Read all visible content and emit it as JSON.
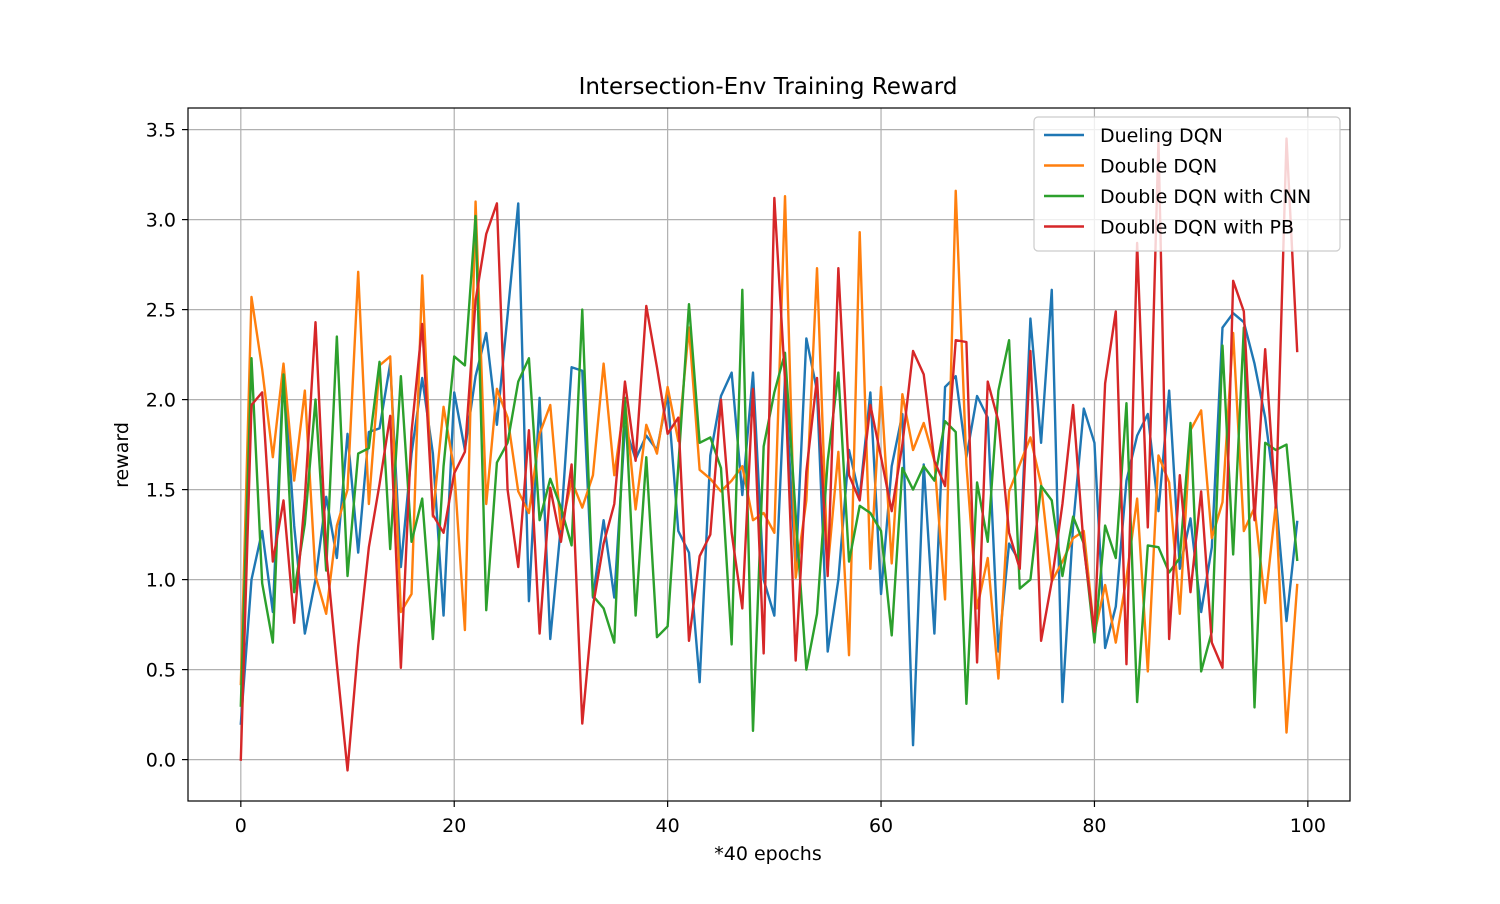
{
  "chart_data": {
    "type": "line",
    "title": "Intersection-Env Training Reward",
    "xlabel": "*40 epochs",
    "ylabel": "reward",
    "xlim": [
      -4.95,
      103.95
    ],
    "ylim": [
      -0.23,
      3.62
    ],
    "xticks": [
      0,
      20,
      40,
      60,
      80,
      100
    ],
    "xtick_labels": [
      "0",
      "20",
      "40",
      "60",
      "80",
      "100"
    ],
    "yticks": [
      0.0,
      0.5,
      1.0,
      1.5,
      2.0,
      2.5,
      3.0,
      3.5
    ],
    "ytick_labels": [
      "0.0",
      "0.5",
      "1.0",
      "1.5",
      "2.0",
      "2.5",
      "3.0",
      "3.5"
    ],
    "grid": true,
    "legend_position": "top-right",
    "x": [
      0,
      1,
      2,
      3,
      4,
      5,
      6,
      7,
      8,
      9,
      10,
      11,
      12,
      13,
      14,
      15,
      16,
      17,
      18,
      19,
      20,
      21,
      22,
      23,
      24,
      25,
      26,
      27,
      28,
      29,
      30,
      31,
      32,
      33,
      34,
      35,
      36,
      37,
      38,
      39,
      40,
      41,
      42,
      43,
      44,
      45,
      46,
      47,
      48,
      49,
      50,
      51,
      52,
      53,
      54,
      55,
      56,
      57,
      58,
      59,
      60,
      61,
      62,
      63,
      64,
      65,
      66,
      67,
      68,
      69,
      70,
      71,
      72,
      73,
      74,
      75,
      76,
      77,
      78,
      79,
      80,
      81,
      82,
      83,
      84,
      85,
      86,
      87,
      88,
      89,
      90,
      91,
      92,
      93,
      94,
      95,
      96,
      97,
      98,
      99
    ],
    "series": [
      {
        "name": "Dueling DQN",
        "color": "#1f77b4",
        "values": [
          0.2,
          1.0,
          1.27,
          0.82,
          2.17,
          1.3,
          0.7,
          1.0,
          1.46,
          1.12,
          1.81,
          1.15,
          1.82,
          1.84,
          2.2,
          1.07,
          1.7,
          2.12,
          1.7,
          0.8,
          2.04,
          1.72,
          2.13,
          2.37,
          1.86,
          2.47,
          3.09,
          0.88,
          2.01,
          0.67,
          1.3,
          2.18,
          2.16,
          0.9,
          1.33,
          0.9,
          1.85,
          1.67,
          1.8,
          1.72,
          2.03,
          1.27,
          1.15,
          0.43,
          1.69,
          2.02,
          2.15,
          1.47,
          2.15,
          1.0,
          0.8,
          2.12,
          1.05,
          2.34,
          2.05,
          0.6,
          1.0,
          1.72,
          1.46,
          2.04,
          0.92,
          1.63,
          1.92,
          0.08,
          1.64,
          0.7,
          2.07,
          2.13,
          1.68,
          2.02,
          1.9,
          0.6,
          1.2,
          1.1,
          2.45,
          1.76,
          2.61,
          0.32,
          1.3,
          1.95,
          1.76,
          0.62,
          0.85,
          1.55,
          1.8,
          1.92,
          1.38,
          2.05,
          1.06,
          1.34,
          0.82,
          1.18,
          2.4,
          2.48,
          2.43,
          2.2,
          1.9,
          1.45,
          0.77,
          1.32
        ]
      },
      {
        "name": "Double DQN",
        "color": "#ff7f0e",
        "values": [
          0.42,
          2.57,
          2.17,
          1.68,
          2.2,
          1.55,
          2.05,
          1.02,
          0.81,
          1.3,
          1.5,
          2.71,
          1.42,
          2.19,
          2.24,
          0.82,
          0.92,
          2.69,
          1.35,
          1.96,
          1.61,
          0.72,
          3.1,
          1.42,
          2.06,
          1.9,
          1.49,
          1.37,
          1.81,
          1.97,
          1.28,
          1.55,
          1.4,
          1.58,
          2.2,
          1.58,
          2.0,
          1.39,
          1.86,
          1.7,
          2.07,
          1.77,
          2.4,
          1.61,
          1.56,
          1.49,
          1.55,
          1.63,
          1.33,
          1.37,
          1.26,
          3.13,
          1.01,
          1.44,
          2.73,
          1.06,
          1.71,
          0.58,
          2.93,
          1.06,
          2.07,
          1.09,
          2.03,
          1.72,
          1.87,
          1.66,
          0.89,
          3.16,
          1.64,
          0.84,
          1.12,
          0.45,
          1.49,
          1.64,
          1.79,
          1.53,
          0.99,
          1.1,
          1.23,
          1.27,
          0.7,
          0.97,
          0.65,
          1.01,
          1.45,
          0.49,
          1.69,
          1.54,
          0.81,
          1.83,
          1.94,
          1.23,
          1.43,
          2.37,
          1.27,
          1.4,
          0.87,
          1.42,
          0.15,
          0.97
        ]
      },
      {
        "name": "Double DQN with CNN",
        "color": "#2ca02c",
        "values": [
          0.3,
          2.23,
          0.98,
          0.65,
          2.14,
          0.93,
          1.31,
          2.0,
          1.05,
          2.35,
          1.02,
          1.7,
          1.73,
          2.21,
          1.17,
          2.13,
          1.21,
          1.45,
          0.67,
          1.63,
          2.24,
          2.19,
          3.02,
          0.83,
          1.65,
          1.76,
          2.1,
          2.23,
          1.33,
          1.56,
          1.4,
          1.19,
          2.5,
          0.91,
          0.84,
          0.65,
          2.01,
          0.8,
          1.68,
          0.68,
          0.74,
          1.63,
          2.53,
          1.76,
          1.79,
          1.62,
          0.64,
          2.61,
          0.16,
          1.74,
          2.04,
          2.26,
          1.36,
          0.5,
          0.81,
          1.66,
          2.15,
          1.1,
          1.41,
          1.37,
          1.27,
          0.69,
          1.62,
          1.5,
          1.63,
          1.55,
          1.88,
          1.82,
          0.31,
          1.54,
          1.21,
          2.05,
          2.33,
          0.95,
          1.0,
          1.52,
          1.44,
          1.02,
          1.35,
          1.2,
          0.65,
          1.3,
          1.12,
          1.98,
          0.32,
          1.19,
          1.18,
          1.04,
          1.12,
          1.87,
          0.49,
          0.71,
          2.3,
          1.14,
          2.4,
          0.29,
          1.76,
          1.72,
          1.75,
          1.11
        ]
      },
      {
        "name": "Double DQN with PB",
        "color": "#d62728",
        "values": [
          0.0,
          1.97,
          2.04,
          1.1,
          1.44,
          0.76,
          1.45,
          2.43,
          1.15,
          0.53,
          -0.06,
          0.63,
          1.18,
          1.53,
          1.91,
          0.51,
          1.82,
          2.42,
          1.36,
          1.26,
          1.59,
          1.71,
          2.55,
          2.92,
          3.09,
          1.5,
          1.07,
          1.83,
          0.7,
          1.51,
          1.21,
          1.64,
          0.2,
          0.85,
          1.2,
          1.42,
          2.1,
          1.66,
          2.52,
          2.18,
          1.81,
          1.9,
          0.66,
          1.13,
          1.25,
          2.0,
          1.26,
          0.84,
          2.06,
          0.59,
          3.12,
          2.11,
          0.55,
          1.6,
          2.12,
          1.02,
          2.73,
          1.58,
          1.44,
          1.97,
          1.68,
          1.38,
          1.75,
          2.27,
          2.14,
          1.66,
          1.52,
          2.33,
          2.32,
          0.54,
          2.1,
          1.88,
          1.26,
          1.06,
          2.27,
          0.66,
          0.99,
          1.42,
          1.97,
          1.18,
          0.71,
          2.09,
          2.49,
          0.53,
          2.87,
          1.29,
          3.44,
          0.67,
          1.58,
          0.93,
          1.49,
          0.65,
          0.51,
          2.66,
          2.49,
          1.33,
          2.28,
          1.4,
          3.45,
          2.27
        ]
      }
    ]
  }
}
